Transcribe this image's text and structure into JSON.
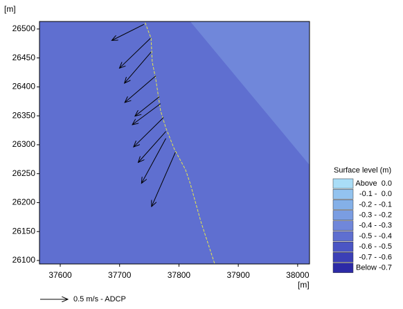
{
  "chart_data": {
    "type": "vector-map",
    "xlabel": "[m]",
    "ylabel": "[m]",
    "xlim": [
      37565,
      38020
    ],
    "ylim": [
      26094,
      26513
    ],
    "xticks": [
      37600,
      37700,
      37800,
      37900,
      38000
    ],
    "yticks": [
      26100,
      26150,
      26200,
      26250,
      26300,
      26350,
      26400,
      26450,
      26500
    ],
    "background_color": "#5f6fd0",
    "regions": [
      {
        "color": "#7087da",
        "x": [
          37819,
          38020,
          38020
        ],
        "y": [
          26513,
          26265,
          26513
        ]
      }
    ],
    "track": {
      "color": "#e8e84a",
      "x": [
        37743,
        37753,
        37755,
        37761,
        37769,
        37778,
        37792,
        37811,
        37819,
        37837,
        37860
      ],
      "y": [
        26511,
        26484,
        26443,
        26413,
        26359,
        26329,
        26293,
        26257,
        26233,
        26167,
        26095
      ]
    },
    "vectors": {
      "color": "#000000",
      "x": [
        37741,
        37752,
        37753,
        37761,
        37767,
        37769,
        37774,
        37778,
        37778,
        37794
      ],
      "y": [
        26508,
        26484,
        26460,
        26419,
        26383,
        26371,
        26347,
        26323,
        26311,
        26287
      ],
      "u": [
        -0.58,
        -0.56,
        -0.48,
        -0.56,
        -0.44,
        -0.51,
        -0.54,
        -0.5,
        -0.44,
        -0.43
      ],
      "v": [
        -0.29,
        -0.54,
        -0.56,
        -0.48,
        -0.35,
        -0.38,
        -0.53,
        -0.56,
        -0.81,
        -0.98
      ]
    },
    "scale_label": "0.5 m/s - ADCP",
    "legend": {
      "title": "Surface level (m)",
      "entries": [
        {
          "label": "Above  0.0",
          "color": "#a9ddf7"
        },
        {
          "label": "-0.1 -  0.0",
          "color": "#93c3ef"
        },
        {
          "label": "-0.2 - -0.1",
          "color": "#84b0e8"
        },
        {
          "label": "-0.3 - -0.2",
          "color": "#7a9de2"
        },
        {
          "label": "-0.4 - -0.3",
          "color": "#7087da"
        },
        {
          "label": "-0.5 - -0.4",
          "color": "#5f6fd0"
        },
        {
          "label": "-0.6 - -0.5",
          "color": "#4b55c4"
        },
        {
          "label": "-0.7 - -0.6",
          "color": "#3b3fb6"
        },
        {
          "label": "Below -0.7",
          "color": "#2c2aa6"
        }
      ]
    }
  }
}
